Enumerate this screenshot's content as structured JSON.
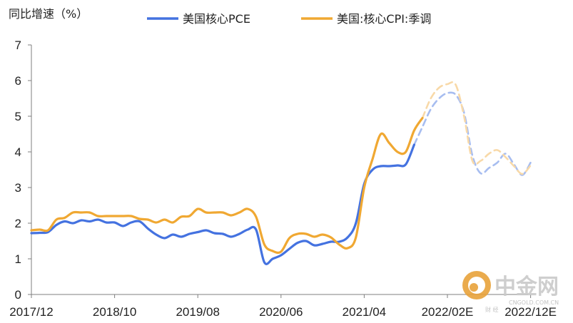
{
  "chart_data": {
    "type": "line",
    "ylabel": "同比增速（%）",
    "ylim": [
      0,
      7
    ],
    "yticks": [
      "0",
      "1",
      "2",
      "3",
      "4",
      "5",
      "6",
      "7"
    ],
    "x_start": "2017/12",
    "x_end": "2022/12",
    "x_tick_labels": [
      {
        "label": "2017/12",
        "month_index": 0
      },
      {
        "label": "2018/10",
        "month_index": 10
      },
      {
        "label": "2019/08",
        "month_index": 20
      },
      {
        "label": "2020/06",
        "month_index": 30
      },
      {
        "label": "2021/04",
        "month_index": 40
      },
      {
        "label": "2022/02E",
        "month_index": 50
      },
      {
        "label": "2022/12E",
        "month_index": 60
      }
    ],
    "legend_position": "top",
    "series": [
      {
        "name": "美国核心PCE",
        "color": "#4472e0",
        "forecast_color": "#a7bdf0",
        "actual": [
          [
            "2017/12",
            1.72
          ],
          [
            "2018/01",
            1.73
          ],
          [
            "2018/02",
            1.75
          ],
          [
            "2018/03",
            1.95
          ],
          [
            "2018/04",
            2.05
          ],
          [
            "2018/05",
            2.0
          ],
          [
            "2018/06",
            2.08
          ],
          [
            "2018/07",
            2.05
          ],
          [
            "2018/08",
            2.1
          ],
          [
            "2018/09",
            2.02
          ],
          [
            "2018/10",
            2.02
          ],
          [
            "2018/11",
            1.92
          ],
          [
            "2018/12",
            2.02
          ],
          [
            "2019/01",
            2.05
          ],
          [
            "2019/02",
            1.85
          ],
          [
            "2019/03",
            1.68
          ],
          [
            "2019/04",
            1.58
          ],
          [
            "2019/05",
            1.68
          ],
          [
            "2019/06",
            1.62
          ],
          [
            "2019/07",
            1.7
          ],
          [
            "2019/08",
            1.75
          ],
          [
            "2019/09",
            1.8
          ],
          [
            "2019/10",
            1.72
          ],
          [
            "2019/11",
            1.7
          ],
          [
            "2019/12",
            1.62
          ],
          [
            "2020/01",
            1.7
          ],
          [
            "2020/02",
            1.82
          ],
          [
            "2020/03",
            1.82
          ],
          [
            "2020/04",
            0.9
          ],
          [
            "2020/05",
            1.0
          ],
          [
            "2020/06",
            1.1
          ],
          [
            "2020/07",
            1.28
          ],
          [
            "2020/08",
            1.45
          ],
          [
            "2020/09",
            1.5
          ],
          [
            "2020/10",
            1.38
          ],
          [
            "2020/11",
            1.42
          ],
          [
            "2020/12",
            1.48
          ],
          [
            "2021/01",
            1.48
          ],
          [
            "2021/02",
            1.6
          ],
          [
            "2021/03",
            2.0
          ],
          [
            "2021/04",
            3.1
          ],
          [
            "2021/05",
            3.5
          ],
          [
            "2021/06",
            3.6
          ],
          [
            "2021/07",
            3.6
          ],
          [
            "2021/08",
            3.62
          ],
          [
            "2021/09",
            3.65
          ],
          [
            "2021/10",
            4.2
          ]
        ],
        "forecast": [
          [
            "2021/10",
            4.2
          ],
          [
            "2021/11",
            4.7
          ],
          [
            "2021/12",
            5.2
          ],
          [
            "2022/01",
            5.5
          ],
          [
            "2022/02",
            5.65
          ],
          [
            "2022/03",
            5.6
          ],
          [
            "2022/04",
            5.1
          ],
          [
            "2022/05",
            3.9
          ],
          [
            "2022/06",
            3.4
          ],
          [
            "2022/07",
            3.55
          ],
          [
            "2022/08",
            3.7
          ],
          [
            "2022/09",
            3.95
          ],
          [
            "2022/10",
            3.65
          ],
          [
            "2022/11",
            3.35
          ],
          [
            "2022/12",
            3.7
          ]
        ]
      },
      {
        "name": "美国:核心CPI:季调",
        "color": "#f0a832",
        "forecast_color": "#f8d9a8",
        "actual": [
          [
            "2017/12",
            1.8
          ],
          [
            "2018/01",
            1.82
          ],
          [
            "2018/02",
            1.8
          ],
          [
            "2018/03",
            2.1
          ],
          [
            "2018/04",
            2.15
          ],
          [
            "2018/05",
            2.3
          ],
          [
            "2018/06",
            2.3
          ],
          [
            "2018/07",
            2.3
          ],
          [
            "2018/08",
            2.2
          ],
          [
            "2018/09",
            2.2
          ],
          [
            "2018/10",
            2.2
          ],
          [
            "2018/11",
            2.2
          ],
          [
            "2018/12",
            2.2
          ],
          [
            "2019/01",
            2.12
          ],
          [
            "2019/02",
            2.1
          ],
          [
            "2019/03",
            2.02
          ],
          [
            "2019/04",
            2.1
          ],
          [
            "2019/05",
            2.02
          ],
          [
            "2019/06",
            2.18
          ],
          [
            "2019/07",
            2.2
          ],
          [
            "2019/08",
            2.4
          ],
          [
            "2019/09",
            2.3
          ],
          [
            "2019/10",
            2.3
          ],
          [
            "2019/11",
            2.3
          ],
          [
            "2019/12",
            2.22
          ],
          [
            "2020/01",
            2.3
          ],
          [
            "2020/02",
            2.4
          ],
          [
            "2020/03",
            2.18
          ],
          [
            "2020/04",
            1.4
          ],
          [
            "2020/05",
            1.22
          ],
          [
            "2020/06",
            1.2
          ],
          [
            "2020/07",
            1.58
          ],
          [
            "2020/08",
            1.7
          ],
          [
            "2020/09",
            1.7
          ],
          [
            "2020/10",
            1.62
          ],
          [
            "2020/11",
            1.68
          ],
          [
            "2020/12",
            1.6
          ],
          [
            "2021/01",
            1.4
          ],
          [
            "2021/02",
            1.3
          ],
          [
            "2021/03",
            1.6
          ],
          [
            "2021/04",
            3.0
          ],
          [
            "2021/05",
            3.8
          ],
          [
            "2021/06",
            4.5
          ],
          [
            "2021/07",
            4.25
          ],
          [
            "2021/08",
            4.0
          ],
          [
            "2021/09",
            4.0
          ],
          [
            "2021/10",
            4.6
          ],
          [
            "2021/11",
            4.95
          ]
        ],
        "forecast": [
          [
            "2021/11",
            4.95
          ],
          [
            "2021/12",
            5.5
          ],
          [
            "2022/01",
            5.8
          ],
          [
            "2022/02",
            5.9
          ],
          [
            "2022/03",
            5.88
          ],
          [
            "2022/04",
            5.0
          ],
          [
            "2022/05",
            3.75
          ],
          [
            "2022/06",
            3.75
          ],
          [
            "2022/07",
            3.95
          ],
          [
            "2022/08",
            4.05
          ],
          [
            "2022/09",
            3.85
          ],
          [
            "2022/10",
            3.6
          ],
          [
            "2022/11",
            3.38
          ],
          [
            "2022/12",
            3.62
          ]
        ]
      }
    ]
  },
  "watermark": {
    "brand": "中金网",
    "domain": "CNGOLD.COM.CN",
    "tagline": "财 经",
    "badge_color": "#e8a23a"
  }
}
